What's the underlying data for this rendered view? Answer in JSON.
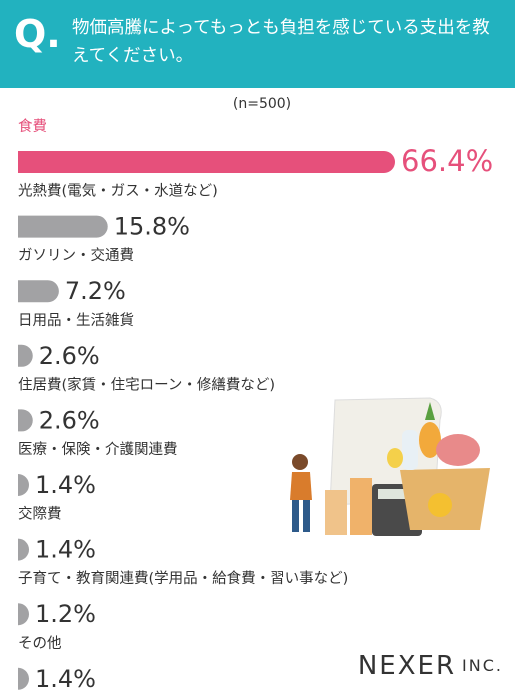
{
  "header": {
    "mark": "Q.",
    "question": "物価高騰によってもっとも負担を感じている支出を教えてください。"
  },
  "chart_data": {
    "type": "bar",
    "orientation": "horizontal",
    "subtitle": "(n=500)",
    "categories": [
      "食費",
      "光熱費(電気・ガス・水道など)",
      "ガソリン・交通費",
      "日用品・生活雑貨",
      "住居費(家賃・住宅ローン・修繕費など)",
      "医療・保険・介護関連費",
      "交際費",
      "子育て・教育関連費(学用品・給食費・習い事など)",
      "その他"
    ],
    "values": [
      66.4,
      15.8,
      7.2,
      2.6,
      2.6,
      1.4,
      1.4,
      1.2,
      1.4
    ],
    "value_labels": [
      "66.4%",
      "15.8%",
      "7.2%",
      "2.6%",
      "2.6%",
      "1.4%",
      "1.4%",
      "1.2%",
      "1.4%"
    ],
    "colors": [
      "#e6507b",
      "#a2a2a4",
      "#a2a2a4",
      "#a2a2a4",
      "#a2a2a4",
      "#a2a2a4",
      "#a2a2a4",
      "#a2a2a4",
      "#a2a2a4"
    ]
  },
  "brand": {
    "name": "NEXER",
    "suffix": "INC."
  }
}
